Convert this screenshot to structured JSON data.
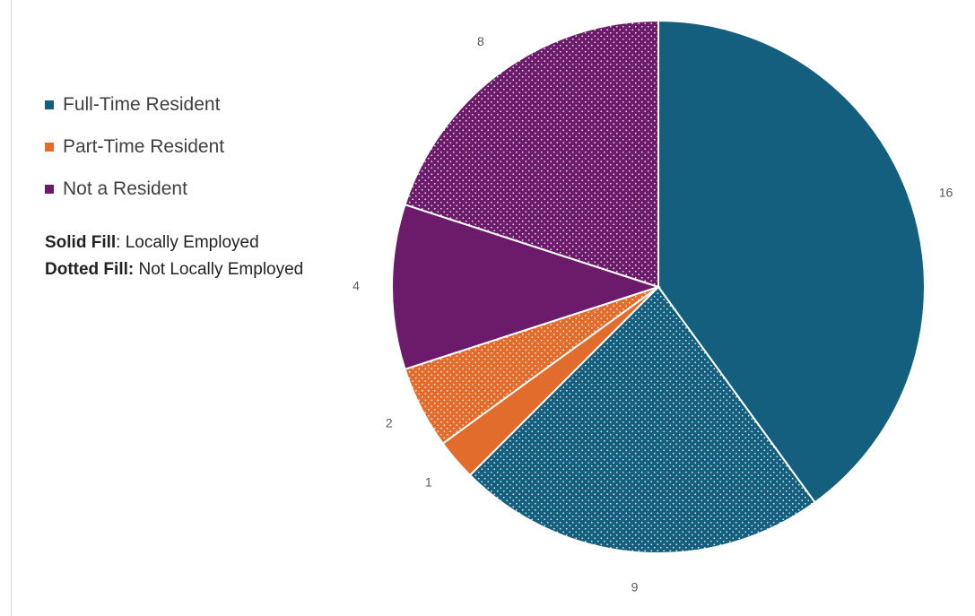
{
  "chart_data": {
    "type": "pie",
    "start_angle_deg": 0,
    "direction": "clockwise",
    "legend_position": "left",
    "categories": [
      "Full-Time Resident",
      "Part-Time Resident",
      "Not a Resident"
    ],
    "colors": {
      "Full-Time Resident": "#155F7E",
      "Part-Time Resident": "#E26C2C",
      "Not a Resident": "#6C1B6B"
    },
    "slices": [
      {
        "category": "Full-Time Resident",
        "employment": "Locally Employed",
        "fill": "solid",
        "value": 16,
        "label": "16"
      },
      {
        "category": "Full-Time Resident",
        "employment": "Not Locally Employed",
        "fill": "dotted",
        "value": 9,
        "label": "9"
      },
      {
        "category": "Part-Time Resident",
        "employment": "Locally Employed",
        "fill": "solid",
        "value": 1,
        "label": "1"
      },
      {
        "category": "Part-Time Resident",
        "employment": "Not Locally Employed",
        "fill": "dotted",
        "value": 2,
        "label": "2"
      },
      {
        "category": "Not a Resident",
        "employment": "Locally Employed",
        "fill": "solid",
        "value": 4,
        "label": "4"
      },
      {
        "category": "Not a Resident",
        "employment": "Not Locally Employed",
        "fill": "dotted",
        "value": 8,
        "label": "8"
      }
    ]
  },
  "legend": {
    "items": [
      {
        "label": "Full-Time Resident",
        "color": "#155F7E"
      },
      {
        "label": "Part-Time Resident",
        "color": "#E26C2C"
      },
      {
        "label": "Not a Resident",
        "color": "#6C1B6B"
      }
    ]
  },
  "fill_note": {
    "solid_key": "Solid Fill",
    "solid_value": "Locally Employed",
    "dotted_key": "Dotted Fill:",
    "dotted_value": "Not Locally Employed"
  }
}
